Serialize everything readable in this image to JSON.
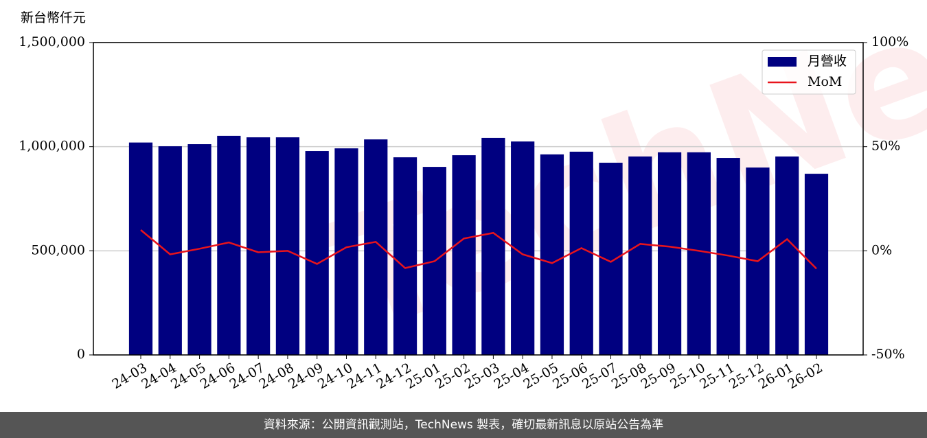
{
  "chart_data": {
    "type": "bar_line",
    "y_label": "新台幣仟元",
    "categories": [
      "24-03",
      "24-04",
      "24-05",
      "24-06",
      "24-07",
      "24-08",
      "24-09",
      "24-10",
      "24-11",
      "24-12",
      "25-01",
      "25-02",
      "25-03",
      "25-04",
      "25-05",
      "25-06",
      "25-07",
      "25-08",
      "25-09",
      "25-10",
      "25-11",
      "25-12",
      "26-01",
      "26-02"
    ],
    "series": [
      {
        "name": "月營收",
        "type": "bar",
        "color": "#000080",
        "values": [
          1020000,
          1002000,
          1012000,
          1052000,
          1045000,
          1045000,
          979000,
          992000,
          1035000,
          949000,
          903000,
          959000,
          1042000,
          1025000,
          963000,
          976000,
          923000,
          953000,
          973000,
          973000,
          946000,
          900000,
          953000,
          870000
        ]
      },
      {
        "name": "MoM",
        "type": "line",
        "axis": "y2",
        "color": "#e8141c",
        "values": [
          10,
          -1.7,
          1,
          4,
          -0.7,
          0,
          -6.3,
          1.7,
          4.3,
          -8.3,
          -5,
          5.9,
          8.6,
          -1.7,
          -5.9,
          1.3,
          -5.3,
          3.3,
          2,
          0,
          -2.3,
          -5,
          5.6,
          -8.6
        ]
      }
    ],
    "ylim": [
      0,
      1500000
    ],
    "yticks": [
      0,
      {
        "value": 500000,
        "label": "500,000"
      },
      {
        "value": 1000000,
        "label": "1,000,000"
      },
      {
        "value": 1500000,
        "label": "1,500,000"
      }
    ],
    "y2lim": [
      -50,
      100
    ],
    "y2ticks": [
      {
        "value": -50,
        "label": "-50%"
      },
      {
        "value": 0,
        "label": "0%"
      },
      {
        "value": 50,
        "label": "50%"
      },
      {
        "value": 100,
        "label": "100%"
      }
    ],
    "grid": true,
    "legend": "upper right"
  },
  "watermark": "TechNews",
  "footer": "資料來源：公開資訊觀測站，TechNews 製表，確切最新訊息以原站公告為準"
}
